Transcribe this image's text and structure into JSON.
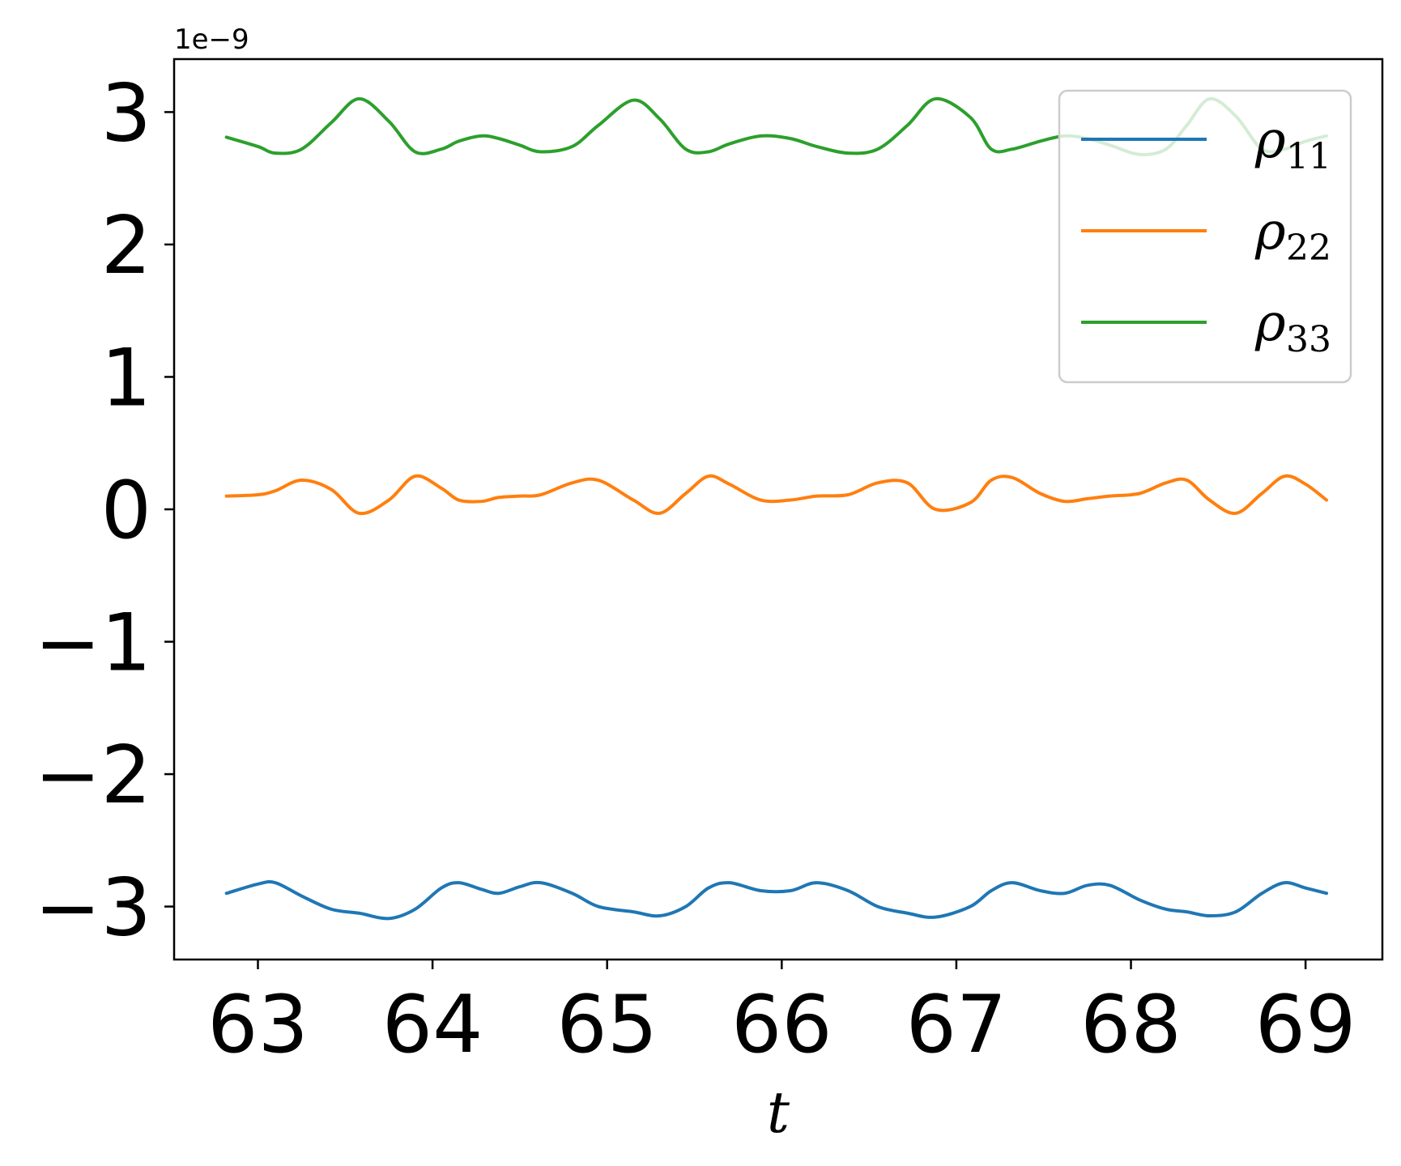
{
  "chart_data": {
    "type": "line",
    "title": "",
    "xlabel": "t",
    "ylabel": "",
    "y_offset_label": "1e−9",
    "xlim": [
      62.52,
      69.44
    ],
    "ylim": [
      -3.4,
      3.4
    ],
    "xticks": [
      63,
      64,
      65,
      66,
      67,
      68,
      69
    ],
    "xtick_labels": [
      "63",
      "64",
      "65",
      "66",
      "67",
      "68",
      "69"
    ],
    "yticks": [
      -3,
      -2,
      -1,
      0,
      1,
      2,
      3
    ],
    "ytick_labels": [
      "−3",
      "−2",
      "−1",
      "0",
      "1",
      "2",
      "3"
    ],
    "grid": false,
    "legend_position": "upper right",
    "x": [
      62.82,
      63.0,
      63.1,
      63.25,
      63.42,
      63.58,
      63.75,
      63.9,
      64.05,
      64.15,
      64.28,
      64.38,
      64.5,
      64.62,
      64.8,
      64.95,
      65.15,
      65.3,
      65.45,
      65.58,
      65.7,
      65.88,
      66.05,
      66.2,
      66.38,
      66.55,
      66.72,
      66.88,
      67.08,
      67.2,
      67.32,
      67.48,
      67.62,
      67.75,
      67.88,
      68.05,
      68.2,
      68.32,
      68.45,
      68.6,
      68.75,
      68.88,
      69.0,
      69.12
    ],
    "series": [
      {
        "name": "ρ₁₁",
        "legend_base": "ρ",
        "legend_sub": "11",
        "color": "#1f77b4",
        "values": [
          -2.9,
          -2.83,
          -2.82,
          -2.92,
          -3.02,
          -3.05,
          -3.09,
          -3.02,
          -2.86,
          -2.82,
          -2.87,
          -2.9,
          -2.85,
          -2.82,
          -2.9,
          -3.0,
          -3.04,
          -3.07,
          -3.0,
          -2.86,
          -2.82,
          -2.88,
          -2.88,
          -2.82,
          -2.88,
          -3.0,
          -3.05,
          -3.08,
          -3.0,
          -2.88,
          -2.82,
          -2.88,
          -2.9,
          -2.84,
          -2.84,
          -2.95,
          -3.02,
          -3.04,
          -3.07,
          -3.04,
          -2.9,
          -2.82,
          -2.86,
          -2.9
        ]
      },
      {
        "name": "ρ₂₂",
        "legend_base": "ρ",
        "legend_sub": "22",
        "color": "#ff7f0e",
        "values": [
          0.1,
          0.11,
          0.14,
          0.22,
          0.15,
          -0.03,
          0.07,
          0.25,
          0.16,
          0.07,
          0.06,
          0.09,
          0.1,
          0.11,
          0.2,
          0.22,
          0.07,
          -0.03,
          0.12,
          0.25,
          0.19,
          0.07,
          0.07,
          0.1,
          0.11,
          0.2,
          0.2,
          0.0,
          0.05,
          0.22,
          0.24,
          0.12,
          0.06,
          0.08,
          0.1,
          0.12,
          0.2,
          0.22,
          0.07,
          -0.03,
          0.12,
          0.25,
          0.19,
          0.07
        ]
      },
      {
        "name": "ρ₃₃",
        "legend_base": "ρ",
        "legend_sub": "33",
        "color": "#2ca02c",
        "values": [
          2.81,
          2.74,
          2.69,
          2.72,
          2.92,
          3.1,
          2.93,
          2.7,
          2.72,
          2.78,
          2.82,
          2.8,
          2.75,
          2.7,
          2.74,
          2.9,
          3.09,
          2.95,
          2.72,
          2.7,
          2.76,
          2.82,
          2.8,
          2.74,
          2.69,
          2.72,
          2.9,
          3.1,
          2.96,
          2.72,
          2.72,
          2.78,
          2.82,
          2.8,
          2.75,
          2.68,
          2.72,
          2.9,
          3.1,
          2.97,
          2.72,
          2.72,
          2.78,
          2.82
        ]
      }
    ]
  }
}
